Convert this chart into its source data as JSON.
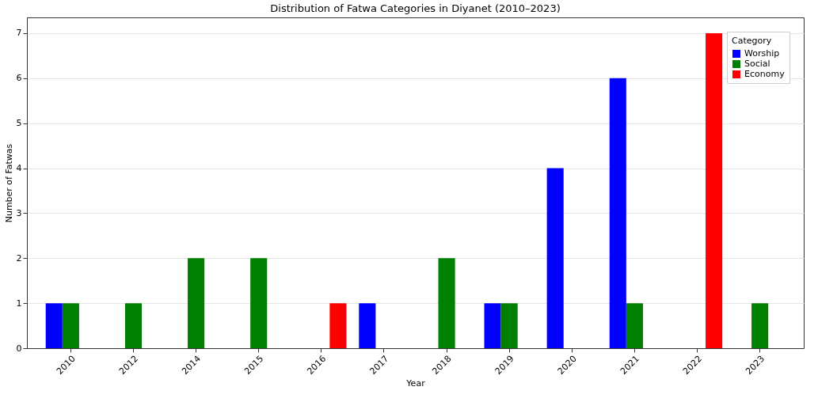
{
  "chart_data": {
    "type": "bar",
    "title": "Distribution of Fatwa Categories in Diyanet (2010–2023)",
    "xlabel": "Year",
    "ylabel": "Number of Fatwas",
    "legend_title": "Category",
    "categories": [
      "2010",
      "2012",
      "2014",
      "2015",
      "2016",
      "2017",
      "2018",
      "2019",
      "2020",
      "2021",
      "2022",
      "2023"
    ],
    "series": [
      {
        "name": "Worship",
        "color": "#0000ff",
        "values": [
          1,
          0,
          0,
          0,
          0,
          1,
          0,
          1,
          4,
          6,
          0,
          0
        ]
      },
      {
        "name": "Social",
        "color": "#008000",
        "values": [
          1,
          1,
          2,
          2,
          0,
          0,
          2,
          1,
          0,
          1,
          0,
          1
        ]
      },
      {
        "name": "Economy",
        "color": "#ff0000",
        "values": [
          0,
          0,
          0,
          0,
          1,
          0,
          0,
          0,
          0,
          0,
          7,
          0
        ]
      }
    ],
    "ylim": [
      0,
      7.35
    ],
    "yticks": [
      0,
      1,
      2,
      3,
      4,
      5,
      6,
      7
    ],
    "grid": "y",
    "legend": "top right"
  }
}
